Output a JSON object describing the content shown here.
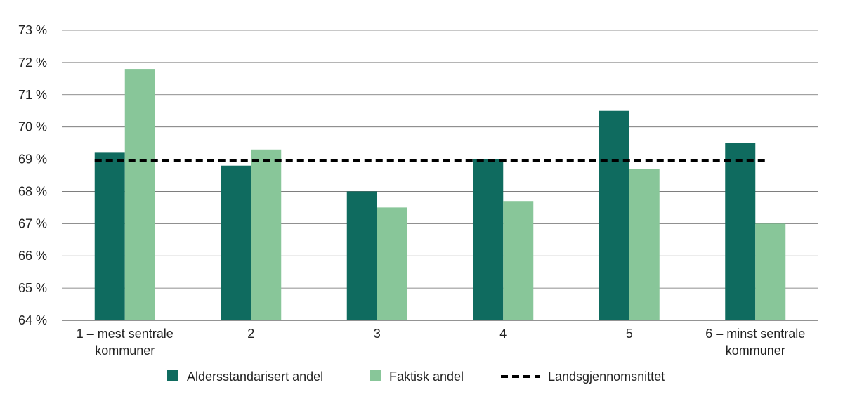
{
  "chart_data": {
    "type": "bar",
    "title": "",
    "xlabel": "",
    "ylabel": "",
    "ylim": [
      64,
      73
    ],
    "y_ticks": [
      "64 %",
      "65 %",
      "66 %",
      "67 %",
      "68 %",
      "69 %",
      "70 %",
      "71 %",
      "72 %",
      "73 %"
    ],
    "y_tick_values": [
      64,
      65,
      66,
      67,
      68,
      69,
      70,
      71,
      72,
      73
    ],
    "grid": true,
    "legend_position": "bottom",
    "categories": [
      [
        "1 – mest sentrale",
        "kommuner"
      ],
      [
        "2"
      ],
      [
        "3"
      ],
      [
        "4"
      ],
      [
        "5"
      ],
      [
        "6 – minst sentrale",
        "kommuner"
      ]
    ],
    "series": [
      {
        "name": "Aldersstandarisert andel",
        "color": "#0f6b5f",
        "values": [
          69.2,
          68.8,
          68.0,
          69.0,
          70.5,
          69.5
        ]
      },
      {
        "name": "Faktisk andel",
        "color": "#88c699",
        "values": [
          71.8,
          69.3,
          67.5,
          67.7,
          68.7,
          67.0
        ]
      }
    ],
    "reference_line": {
      "name": "Landsgjennomsnittet",
      "value": 68.95,
      "color": "#000000",
      "style": "dashed"
    }
  }
}
